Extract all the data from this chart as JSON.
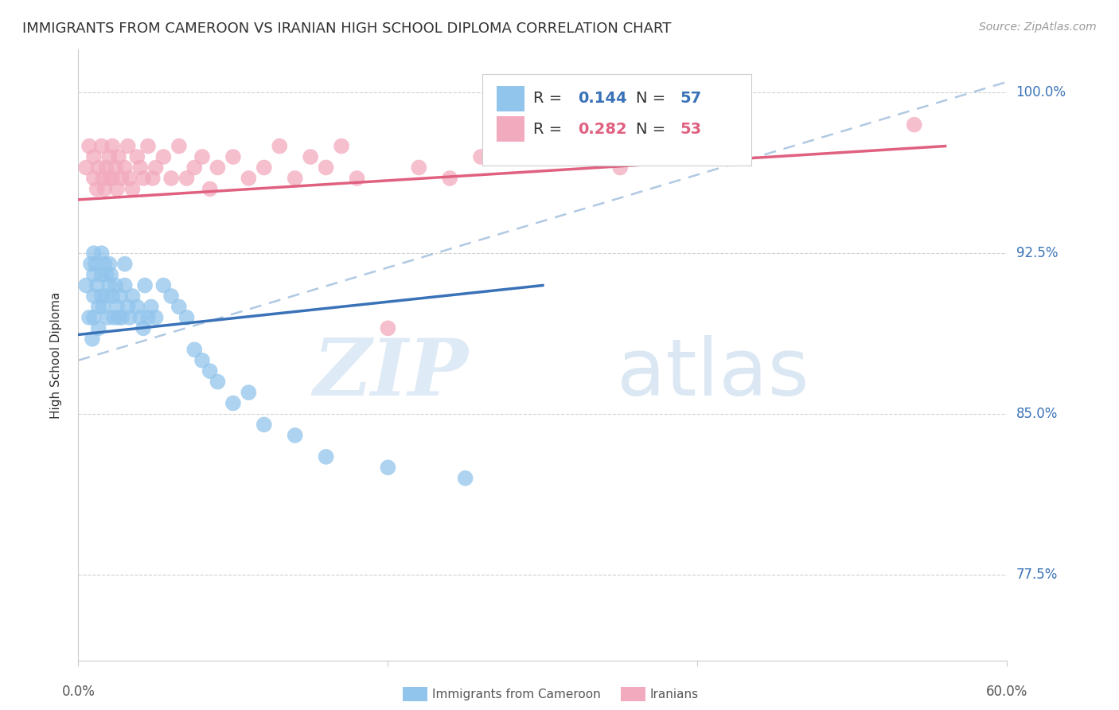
{
  "title": "IMMIGRANTS FROM CAMEROON VS IRANIAN HIGH SCHOOL DIPLOMA CORRELATION CHART",
  "source": "Source: ZipAtlas.com",
  "ylabel": "High School Diploma",
  "yticks": [
    0.775,
    0.85,
    0.925,
    1.0
  ],
  "ytick_labels": [
    "77.5%",
    "85.0%",
    "92.5%",
    "100.0%"
  ],
  "xlim": [
    0.0,
    0.6
  ],
  "ylim": [
    0.735,
    1.02
  ],
  "bg_color": "#ffffff",
  "grid_color": "#cccccc",
  "blue_color": "#92C5EC",
  "pink_color": "#F2AABE",
  "blue_line_color": "#3A72B8",
  "pink_line_color": "#E06080",
  "dashed_line_color": "#A8C4E0",
  "legend_blue_R": "0.144",
  "legend_blue_N": "57",
  "legend_pink_R": "0.282",
  "legend_pink_N": "53",
  "blue_scatter_x": [
    0.005,
    0.007,
    0.008,
    0.009,
    0.01,
    0.01,
    0.01,
    0.01,
    0.011,
    0.012,
    0.013,
    0.013,
    0.015,
    0.015,
    0.015,
    0.016,
    0.017,
    0.018,
    0.018,
    0.019,
    0.02,
    0.02,
    0.021,
    0.022,
    0.023,
    0.024,
    0.025,
    0.026,
    0.027,
    0.028,
    0.03,
    0.03,
    0.032,
    0.033,
    0.035,
    0.038,
    0.04,
    0.042,
    0.043,
    0.045,
    0.047,
    0.05,
    0.055,
    0.06,
    0.065,
    0.07,
    0.075,
    0.08,
    0.085,
    0.09,
    0.1,
    0.11,
    0.12,
    0.14,
    0.16,
    0.2,
    0.25
  ],
  "blue_scatter_y": [
    0.91,
    0.895,
    0.92,
    0.885,
    0.925,
    0.915,
    0.905,
    0.895,
    0.92,
    0.91,
    0.9,
    0.89,
    0.925,
    0.915,
    0.905,
    0.9,
    0.92,
    0.915,
    0.905,
    0.895,
    0.92,
    0.91,
    0.915,
    0.905,
    0.895,
    0.91,
    0.9,
    0.895,
    0.905,
    0.895,
    0.92,
    0.91,
    0.9,
    0.895,
    0.905,
    0.9,
    0.895,
    0.89,
    0.91,
    0.895,
    0.9,
    0.895,
    0.91,
    0.905,
    0.9,
    0.895,
    0.88,
    0.875,
    0.87,
    0.865,
    0.855,
    0.86,
    0.845,
    0.84,
    0.83,
    0.825,
    0.82
  ],
  "pink_scatter_x": [
    0.005,
    0.007,
    0.01,
    0.01,
    0.012,
    0.013,
    0.015,
    0.016,
    0.017,
    0.018,
    0.02,
    0.02,
    0.022,
    0.022,
    0.024,
    0.025,
    0.026,
    0.028,
    0.03,
    0.032,
    0.033,
    0.035,
    0.038,
    0.04,
    0.042,
    0.045,
    0.048,
    0.05,
    0.055,
    0.06,
    0.065,
    0.07,
    0.075,
    0.08,
    0.085,
    0.09,
    0.1,
    0.11,
    0.12,
    0.13,
    0.14,
    0.15,
    0.16,
    0.17,
    0.18,
    0.2,
    0.22,
    0.24,
    0.26,
    0.3,
    0.35,
    0.42,
    0.54
  ],
  "pink_scatter_y": [
    0.965,
    0.975,
    0.97,
    0.96,
    0.955,
    0.965,
    0.975,
    0.96,
    0.955,
    0.965,
    0.97,
    0.96,
    0.975,
    0.96,
    0.965,
    0.955,
    0.97,
    0.96,
    0.965,
    0.975,
    0.96,
    0.955,
    0.97,
    0.965,
    0.96,
    0.975,
    0.96,
    0.965,
    0.97,
    0.96,
    0.975,
    0.96,
    0.965,
    0.97,
    0.955,
    0.965,
    0.97,
    0.96,
    0.965,
    0.975,
    0.96,
    0.97,
    0.965,
    0.975,
    0.96,
    0.89,
    0.965,
    0.96,
    0.97,
    0.975,
    0.965,
    0.98,
    0.985
  ],
  "watermark_zip": "ZIP",
  "watermark_atlas": "atlas",
  "title_fontsize": 13,
  "axis_label_fontsize": 11,
  "tick_fontsize": 12,
  "legend_fontsize": 14,
  "blue_trendline": [
    0.0,
    0.887,
    0.3,
    0.91
  ],
  "pink_trendline": [
    0.0,
    0.95,
    0.56,
    0.975
  ],
  "dashed_trendline": [
    0.0,
    0.875,
    0.6,
    1.005
  ]
}
